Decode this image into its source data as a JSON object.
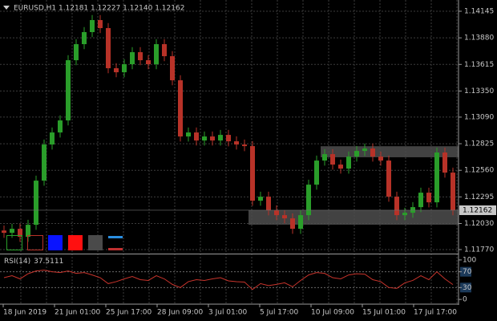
{
  "chart_data": [
    {
      "type": "candlestick",
      "title": "EURUSD,H1  1.12181 1.12227 1.12140 1.12162",
      "x_labels": [
        "18 Jun 2019",
        "21 Jun 01:00",
        "25 Jun 17:00",
        "28 Jun 09:00",
        "3 Jul 01:00",
        "5 Jul 17:00",
        "10 Jul 09:00",
        "15 Jul 01:00",
        "17 Jul 17:00"
      ],
      "open": [
        1.1196,
        1.11937,
        1.11977,
        1.11897,
        1.12017,
        1.12457,
        1.12817,
        1.12937,
        1.13057,
        1.13657,
        1.13817,
        1.13937,
        1.14057,
        1.13977,
        1.13577,
        1.13537,
        1.13617,
        1.13737,
        1.13657,
        1.13617,
        1.13817,
        1.13697,
        1.13457,
        1.12897,
        1.12937,
        1.12857,
        1.12897,
        1.12857,
        1.12913,
        1.12849,
        1.12817,
        1.12801,
        1.12257,
        1.12297,
        1.12161,
        1.12113,
        1.12081,
        1.11977,
        1.12113,
        1.12417,
        1.12657,
        1.12721,
        1.12617,
        1.12577,
        1.12697,
        1.12753,
        1.12777,
        1.12697,
        1.12657,
        1.12297,
        1.12113,
        1.12137,
        1.12193,
        1.12337,
        1.12241,
        1.12737,
        1.12537
      ],
      "high": [
        1.1201,
        1.12027,
        1.12027,
        1.12067,
        1.12507,
        1.12867,
        1.12987,
        1.13107,
        1.13707,
        1.13867,
        1.13987,
        1.14107,
        1.14107,
        1.14027,
        1.13627,
        1.13667,
        1.13787,
        1.13787,
        1.13707,
        1.13867,
        1.13867,
        1.13747,
        1.13507,
        1.12987,
        1.12987,
        1.12947,
        1.12947,
        1.12963,
        1.12963,
        1.12899,
        1.12867,
        1.12851,
        1.12347,
        1.12347,
        1.12211,
        1.12163,
        1.12131,
        1.12163,
        1.12467,
        1.12707,
        1.12771,
        1.12771,
        1.12667,
        1.12747,
        1.12803,
        1.12827,
        1.12827,
        1.12747,
        1.12707,
        1.12347,
        1.12187,
        1.12243,
        1.12387,
        1.12387,
        1.12787,
        1.12787,
        1.12587
      ],
      "low": [
        1.11887,
        1.11887,
        1.11847,
        1.11847,
        1.11967,
        1.12407,
        1.12767,
        1.12887,
        1.13007,
        1.13607,
        1.13767,
        1.13887,
        1.13927,
        1.13527,
        1.13487,
        1.13487,
        1.13567,
        1.13607,
        1.13567,
        1.13567,
        1.13647,
        1.13407,
        1.12847,
        1.12847,
        1.12807,
        1.12807,
        1.12807,
        1.12807,
        1.12799,
        1.12767,
        1.12751,
        1.12207,
        1.12207,
        1.12111,
        1.12063,
        1.12031,
        1.11927,
        1.11927,
        1.12063,
        1.12367,
        1.12607,
        1.12567,
        1.12527,
        1.12527,
        1.12647,
        1.12703,
        1.12647,
        1.12607,
        1.12247,
        1.12063,
        1.12063,
        1.12087,
        1.12143,
        1.12191,
        1.12191,
        1.12487,
        1.12112
      ],
      "close": [
        1.11937,
        1.11977,
        1.11897,
        1.12017,
        1.12457,
        1.12817,
        1.12937,
        1.13057,
        1.13657,
        1.13817,
        1.13937,
        1.14057,
        1.13977,
        1.13577,
        1.13537,
        1.13617,
        1.13737,
        1.13657,
        1.13617,
        1.13817,
        1.13697,
        1.13457,
        1.12897,
        1.12937,
        1.12857,
        1.12897,
        1.12857,
        1.12913,
        1.12849,
        1.12817,
        1.12801,
        1.12257,
        1.12297,
        1.12161,
        1.12113,
        1.12081,
        1.11977,
        1.12113,
        1.12417,
        1.12657,
        1.12721,
        1.12617,
        1.12577,
        1.12697,
        1.12753,
        1.12777,
        1.12697,
        1.12657,
        1.12297,
        1.12113,
        1.12137,
        1.12193,
        1.12337,
        1.12241,
        1.12737,
        1.12537,
        1.12162
      ],
      "colors": {
        "up": "#2a9e2a",
        "down": "#b83228"
      },
      "zones": [
        {
          "start": 40,
          "high": 1.128,
          "low": 1.1269
        },
        {
          "start": 31,
          "high": 1.12162,
          "low": 1.12018
        }
      ],
      "zone_color": "#4d4d4d",
      "ylim": [
        1.11738,
        1.14257
      ],
      "yticks": [
        1.14145,
        {
          "value": 1.1388,
          "label": "1.13880"
        },
        1.13615,
        {
          "value": 1.1335,
          "label": "1.13350"
        },
        {
          "value": 1.1309,
          "label": "1.13090"
        },
        1.12825,
        {
          "value": 1.1256,
          "label": "1.12560"
        },
        1.12295,
        {
          "value": 1.1203,
          "label": "1.12030"
        },
        {
          "value": 1.1177,
          "label": "1.11770"
        }
      ],
      "grid": true
    },
    {
      "type": "line",
      "title": "RSI(14)",
      "color": "#c8342c",
      "values": [
        55,
        60,
        52,
        65,
        72,
        74,
        70,
        68,
        72,
        66,
        68,
        62,
        55,
        40,
        45,
        52,
        58,
        50,
        48,
        60,
        52,
        38,
        30,
        45,
        50,
        48,
        52,
        55,
        47,
        45,
        44,
        25,
        40,
        35,
        38,
        42,
        32,
        48,
        62,
        68,
        66,
        55,
        52,
        62,
        65,
        64,
        50,
        45,
        30,
        28,
        42,
        48,
        60,
        50,
        70,
        52,
        37.5111
      ],
      "ylim": [
        -10,
        112
      ],
      "yticks": [
        100,
        70,
        30,
        0
      ],
      "levels": [
        70,
        30
      ]
    }
  ]
}
